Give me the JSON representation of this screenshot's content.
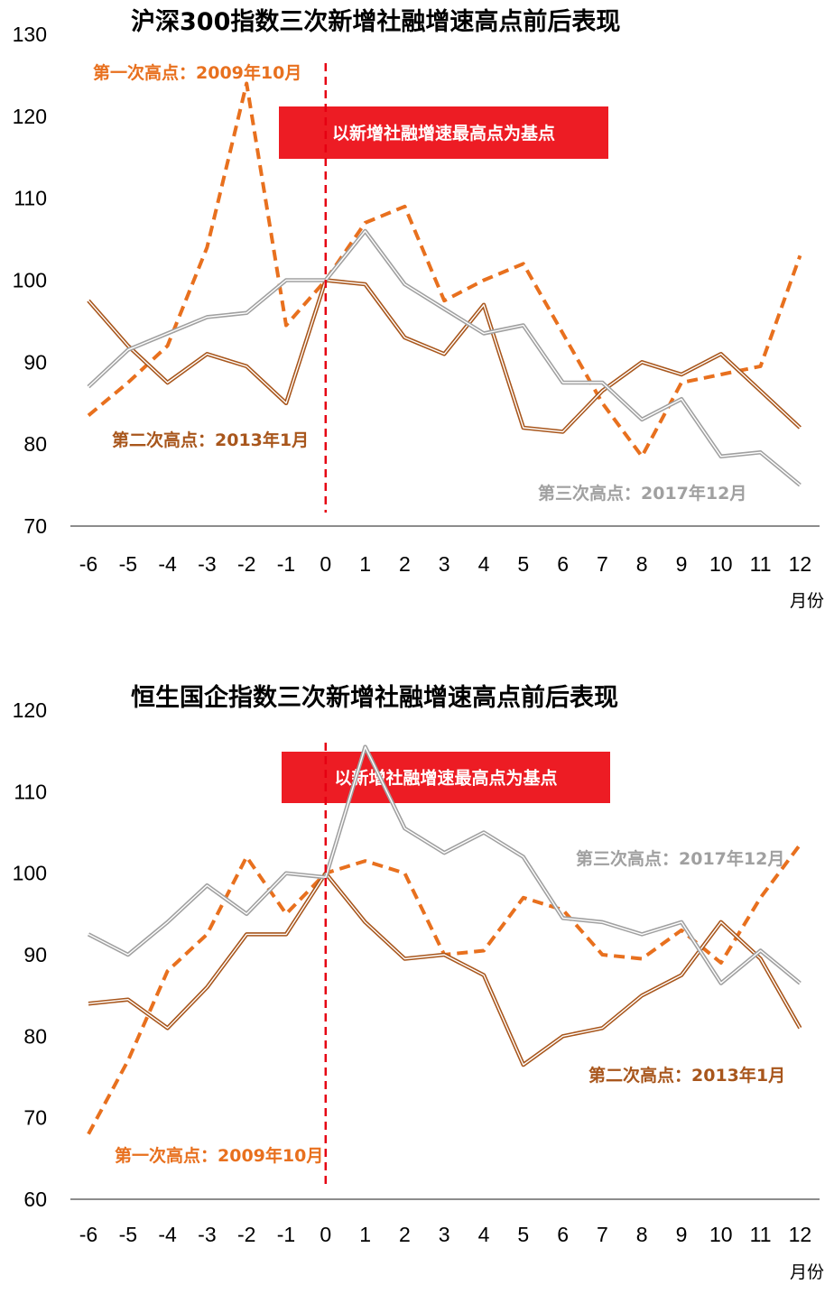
{
  "chart_data": [
    {
      "type": "line",
      "title": "沪深300指数三次新增社融增速高点前后表现",
      "x": [
        -6,
        -5,
        -4,
        -3,
        -2,
        -1,
        0,
        1,
        2,
        3,
        4,
        5,
        6,
        7,
        8,
        9,
        10,
        11,
        12
      ],
      "x_tick_labels": [
        "-6",
        "-5",
        "-4",
        "-3",
        "-2",
        "-1",
        "0",
        "1",
        "2",
        "3",
        "4",
        "5",
        "6",
        "7",
        "8",
        "9",
        "10",
        "11",
        "12"
      ],
      "x_unit": "月份",
      "ylim": [
        70,
        130
      ],
      "y_ticks": [
        70,
        80,
        90,
        100,
        110,
        120,
        130
      ],
      "grid": false,
      "banner": "以新增社融增速最高点为基点",
      "series": [
        {
          "name": "第一次高点：2009年10月",
          "color": "#E8701E",
          "style": "dashed",
          "values": [
            83.5,
            87.5,
            92,
            104,
            124,
            94.5,
            100,
            107,
            109,
            97.5,
            100,
            102,
            93.5,
            85,
            78.5,
            87.5,
            88.5,
            89.5,
            103
          ]
        },
        {
          "name": "第二次高点：2013年1月",
          "color": "#A8561C",
          "style": "double",
          "values": [
            97.5,
            92,
            87.5,
            91,
            89.5,
            85,
            100,
            99.5,
            93,
            91,
            97,
            82,
            81.5,
            86.5,
            90,
            88.5,
            91,
            86.5,
            82
          ]
        },
        {
          "name": "第三次高点：2017年12月",
          "color": "#A0A0A0",
          "style": "double",
          "values": [
            87,
            91.5,
            93.5,
            95.5,
            96,
            100,
            100,
            106,
            99.5,
            96.5,
            93.5,
            94.5,
            87.5,
            87.5,
            83,
            85.5,
            78.5,
            79,
            75
          ]
        }
      ]
    },
    {
      "type": "line",
      "title": "恒生国企指数三次新增社融增速高点前后表现",
      "x": [
        -6,
        -5,
        -4,
        -3,
        -2,
        -1,
        0,
        1,
        2,
        3,
        4,
        5,
        6,
        7,
        8,
        9,
        10,
        11,
        12
      ],
      "x_tick_labels": [
        "-6",
        "-5",
        "-4",
        "-3",
        "-2",
        "-1",
        "0",
        "1",
        "2",
        "3",
        "4",
        "5",
        "6",
        "7",
        "8",
        "9",
        "10",
        "11",
        "12"
      ],
      "x_unit": "月份",
      "ylim": [
        60,
        120
      ],
      "y_ticks": [
        60,
        70,
        80,
        90,
        100,
        110,
        120
      ],
      "grid": false,
      "banner": "以新增社融增速最高点为基点",
      "series": [
        {
          "name": "第一次高点：2009年10月",
          "color": "#E8701E",
          "style": "dashed",
          "values": [
            68,
            77,
            88,
            92.5,
            102,
            95,
            100,
            101.5,
            100,
            90,
            90.5,
            97,
            95.5,
            90,
            89.5,
            93,
            89,
            97,
            103.5
          ]
        },
        {
          "name": "第二次高点：2013年1月",
          "color": "#A8561C",
          "style": "double",
          "values": [
            84,
            84.5,
            81,
            86,
            92.5,
            92.5,
            100,
            94,
            89.5,
            90,
            87.5,
            76.5,
            80,
            81,
            85,
            87.5,
            94,
            89.5,
            81
          ]
        },
        {
          "name": "第三次高点：2017年12月",
          "color": "#A0A0A0",
          "style": "double",
          "values": [
            92.5,
            90,
            94,
            98.5,
            95,
            100,
            99.5,
            115.5,
            105.5,
            102.5,
            105,
            102,
            94.5,
            94,
            92.5,
            94,
            86.5,
            90.5,
            86.5
          ]
        }
      ]
    }
  ]
}
